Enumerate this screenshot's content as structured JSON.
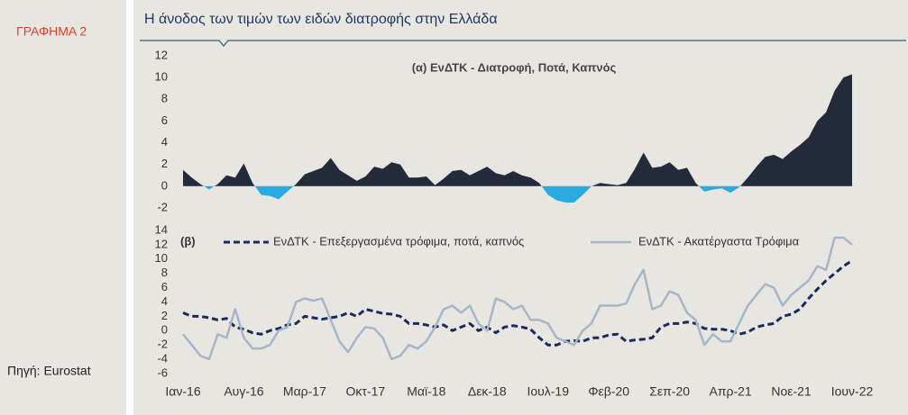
{
  "sidebar": {
    "label": "ΓΡΑΦΗΜΑ 2",
    "source": "Πηγή: Eurostat"
  },
  "title": "Η άνοδος των τιμών των ειδών διατροφής στην Ελλάδα",
  "chart_data": [
    {
      "type": "area",
      "title": "(α) ΕνΔΤΚ - Διατροφή, Ποτά, Καπνός",
      "color": "#232b3a",
      "negative_color": "#29abe2",
      "ylim": [
        -2,
        12
      ],
      "yticks": [
        -2,
        0,
        2,
        4,
        6,
        8,
        10,
        12
      ],
      "values": [
        1.5,
        0.8,
        0.2,
        -0.3,
        0.2,
        1.0,
        0.8,
        2.1,
        0.3,
        -0.8,
        -0.9,
        -1.2,
        -0.5,
        0.2,
        1.1,
        1.4,
        1.7,
        2.6,
        1.5,
        1.0,
        0.5,
        0.9,
        1.8,
        1.6,
        2.2,
        2.0,
        0.8,
        0.8,
        0.9,
        0.1,
        0.7,
        1.4,
        1.5,
        1.0,
        1.4,
        1.8,
        1.2,
        1.0,
        1.4,
        1.0,
        0.8,
        0.3,
        -0.8,
        -1.3,
        -1.5,
        -1.5,
        -0.8,
        0.0,
        0.3,
        0.2,
        0.1,
        0.3,
        1.6,
        3.1,
        1.7,
        1.8,
        2.2,
        1.5,
        1.7,
        0.3,
        -0.5,
        -0.3,
        -0.2,
        -0.6,
        -0.1,
        0.8,
        1.8,
        2.7,
        2.9,
        2.5,
        3.2,
        3.8,
        4.5,
        6.0,
        6.8,
        8.8,
        10.0,
        10.3
      ]
    },
    {
      "type": "line",
      "title": "(β)",
      "ylim": [
        -6,
        14
      ],
      "yticks": [
        -6,
        -4,
        -2,
        0,
        2,
        4,
        6,
        8,
        10,
        12,
        14
      ],
      "categories": [
        "Ιαν-16",
        null,
        null,
        null,
        null,
        null,
        null,
        "Αυγ-16",
        null,
        null,
        null,
        null,
        null,
        null,
        "Μαρ-17",
        null,
        null,
        null,
        null,
        null,
        null,
        "Οκτ-17",
        null,
        null,
        null,
        null,
        null,
        null,
        "Μαϊ-18",
        null,
        null,
        null,
        null,
        null,
        null,
        "Δεκ-18",
        null,
        null,
        null,
        null,
        null,
        null,
        "Ιουλ-19",
        null,
        null,
        null,
        null,
        null,
        null,
        "Φεβ-20",
        null,
        null,
        null,
        null,
        null,
        null,
        "Σεπ-20",
        null,
        null,
        null,
        null,
        null,
        null,
        "Απρ-21",
        null,
        null,
        null,
        null,
        null,
        null,
        "Νοε-21",
        null,
        null,
        null,
        null,
        null,
        null,
        "Ιουν-22"
      ],
      "series": [
        {
          "name": "ΕνΔΤΚ - Επεξεργασμένα τρόφιμα, ποτά, καπνός",
          "color": "#1a2a5e",
          "dashed": true,
          "values": [
            2.5,
            2.0,
            2.0,
            1.8,
            1.5,
            1.7,
            0.5,
            0.2,
            -0.3,
            -0.5,
            0,
            0.3,
            0.8,
            1.0,
            2.0,
            1.8,
            1.6,
            1.8,
            2.0,
            2.5,
            2.0,
            3.0,
            2.7,
            2.4,
            2.3,
            2.0,
            1.0,
            1.0,
            0.8,
            0.5,
            0.8,
            0,
            0.5,
            1.0,
            0,
            0.5,
            -0.3,
            0.5,
            0.7,
            0.5,
            0.2,
            -1.0,
            -2.0,
            -2.0,
            -1.5,
            -1.4,
            -1.5,
            -1.0,
            -1.0,
            -0.6,
            -0.5,
            -1.5,
            -1.3,
            -1.2,
            -1.0,
            0.5,
            1.0,
            1.0,
            1.2,
            1.0,
            0.3,
            0.2,
            0.2,
            0,
            -0.5,
            -0.2,
            0.5,
            0.8,
            1.0,
            2.0,
            2.3,
            3.0,
            4.5,
            5.8,
            7.0,
            8.0,
            9.0,
            9.8
          ]
        },
        {
          "name": "ΕνΔΤΚ - Ακατέργαστα Τρόφιμα",
          "color": "#a6b6c9",
          "dashed": false,
          "values": [
            -0.5,
            -2.0,
            -3.5,
            -4.0,
            -0.5,
            -1.0,
            3.0,
            -1.0,
            -2.5,
            -2.5,
            -2.0,
            0,
            0.5,
            4.0,
            4.5,
            4.2,
            4.5,
            1.5,
            -1.5,
            -3.0,
            -1.0,
            0.5,
            0.3,
            -1.0,
            -4.0,
            -3.5,
            -2.0,
            -2.5,
            -1.5,
            0.5,
            3.0,
            3.5,
            2.5,
            3.5,
            1.0,
            0,
            4.5,
            4.0,
            3.0,
            3.5,
            1.5,
            1.5,
            1.0,
            -1.0,
            -1.5,
            -2.0,
            0,
            1.0,
            3.5,
            3.5,
            3.5,
            3.8,
            6.5,
            8.5,
            3.0,
            3.5,
            5.5,
            5.0,
            2.5,
            1.5,
            -2.0,
            -0.5,
            -1.5,
            -1.5,
            1.0,
            3.5,
            5.0,
            6.5,
            6.0,
            3.5,
            5.0,
            6.0,
            7.0,
            9.0,
            8.5,
            13.0,
            13.0,
            12.0
          ]
        }
      ]
    }
  ]
}
